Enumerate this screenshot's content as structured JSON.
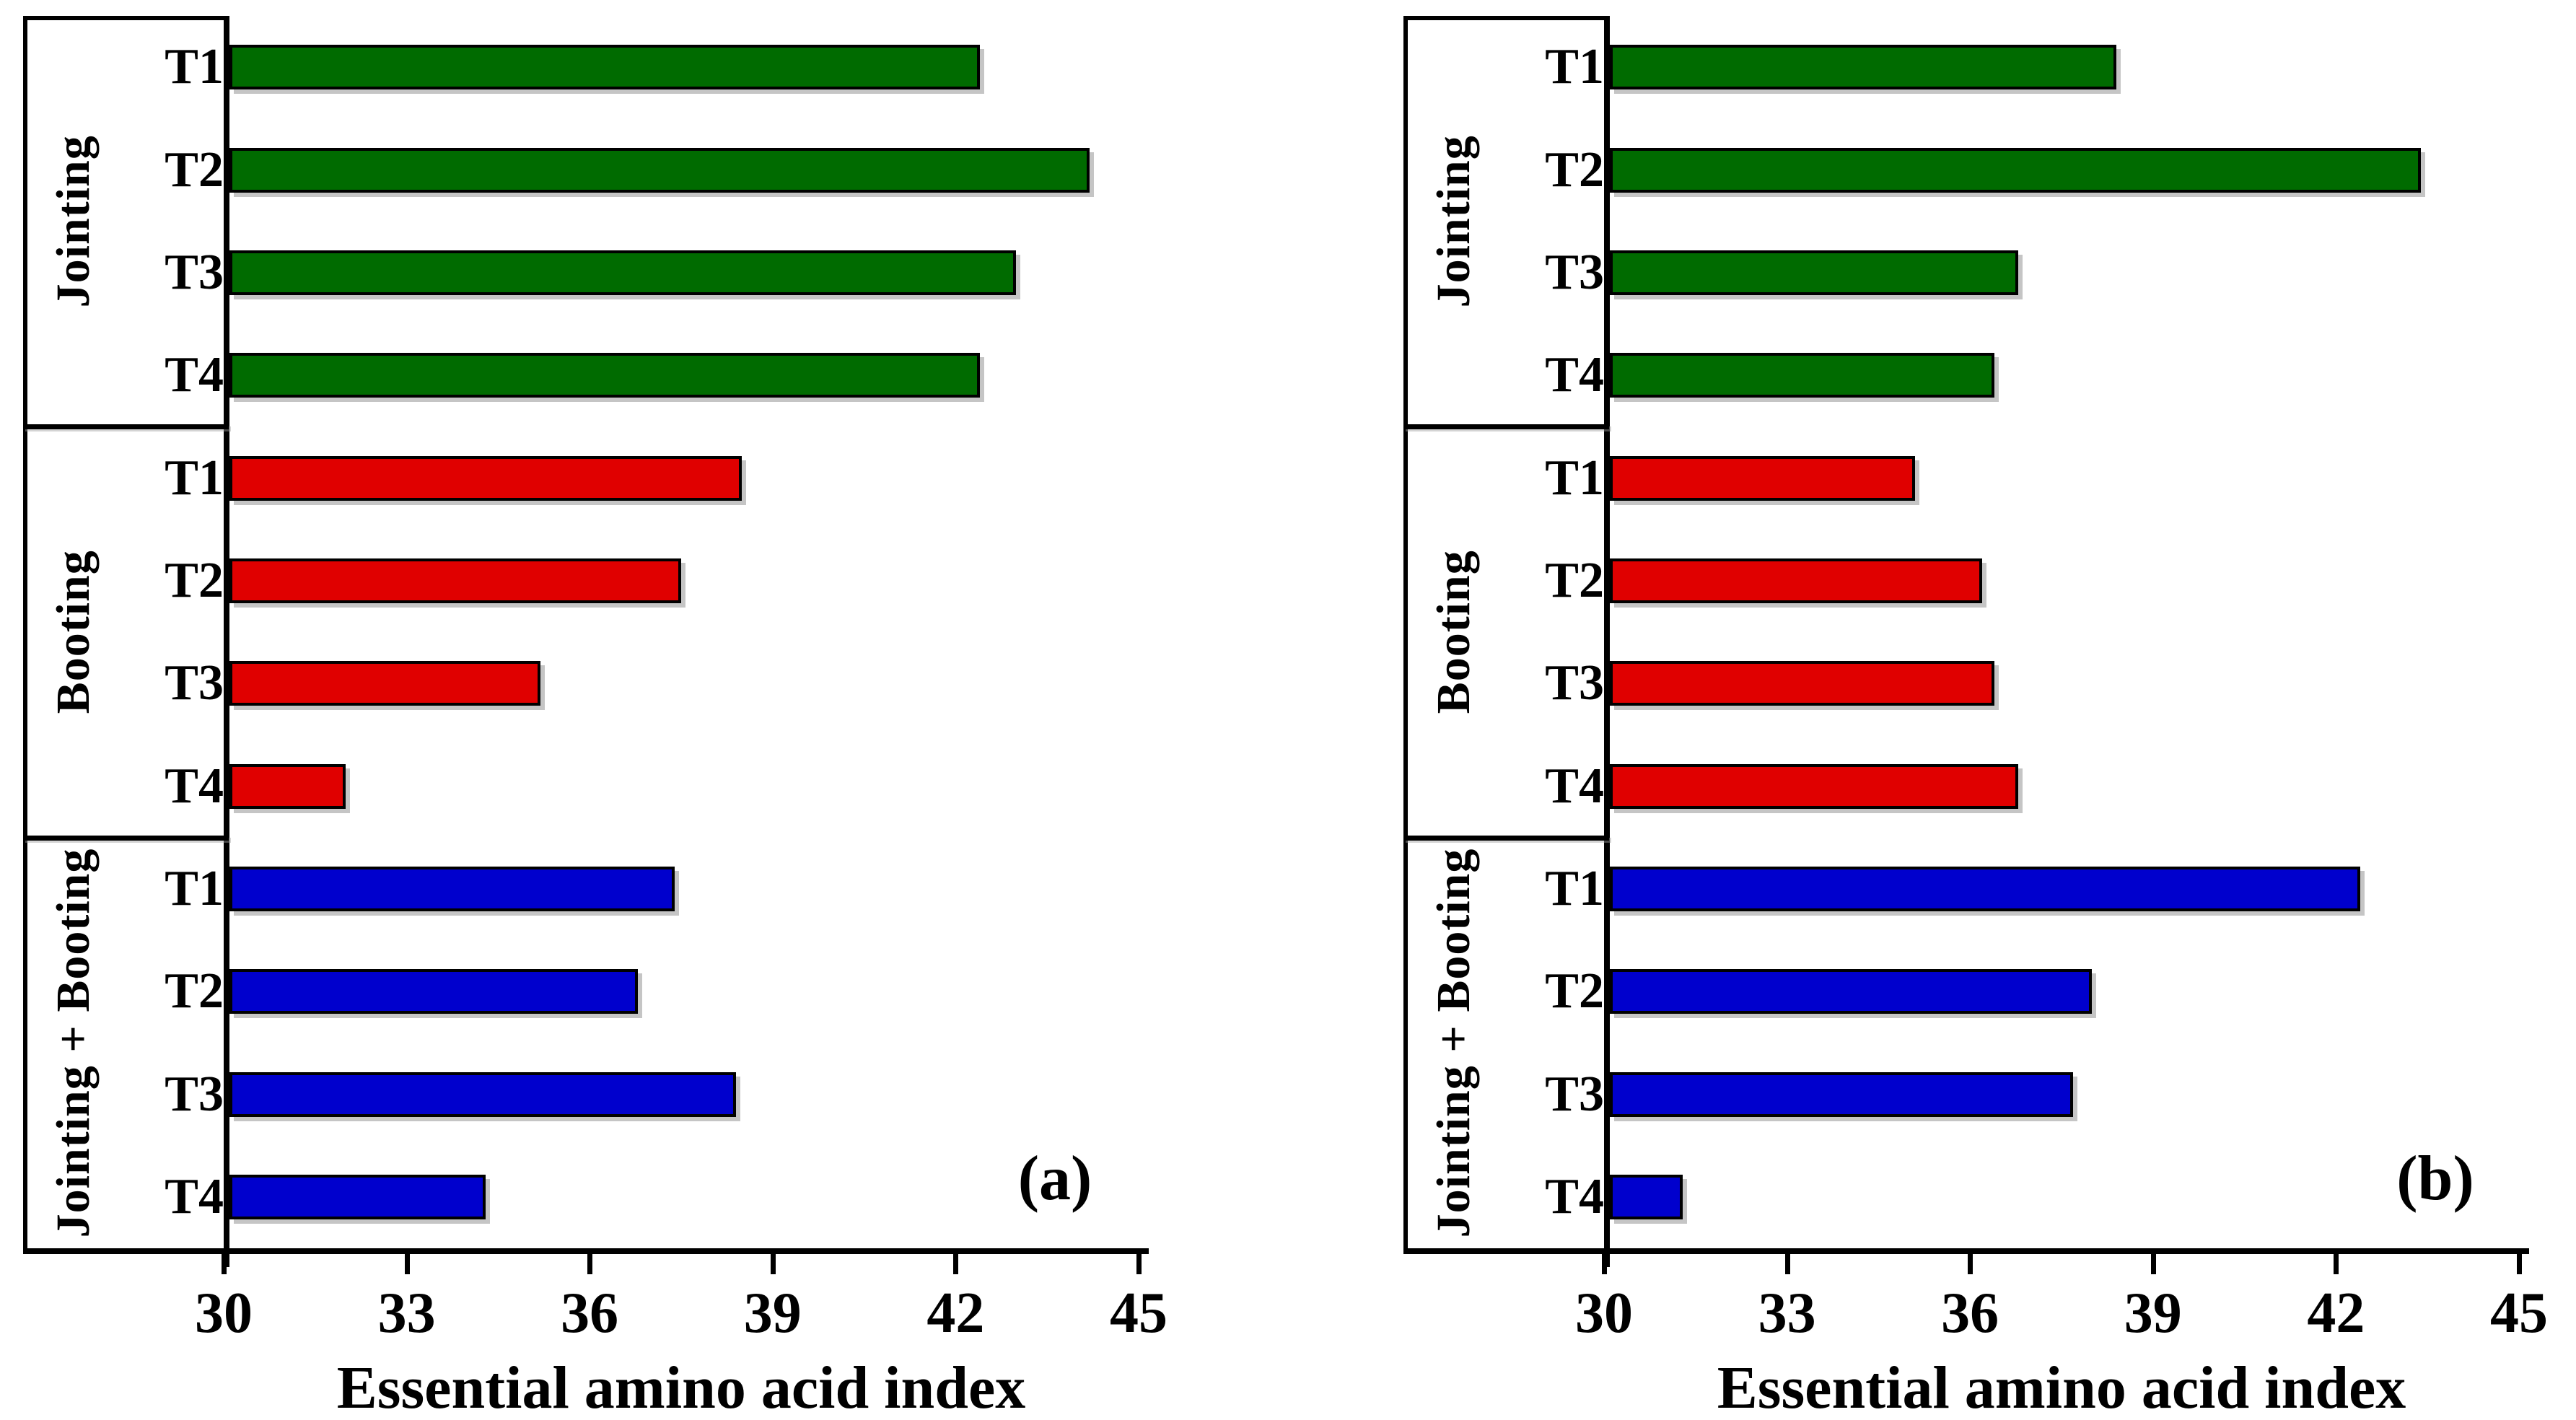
{
  "background_color": "#ffffff",
  "chart_data": [
    {
      "type": "bar",
      "orientation": "horizontal",
      "panel_label": "(a)",
      "xlabel": "Essential amino acid index",
      "xlim": [
        30,
        45
      ],
      "x_ticks": [
        30,
        33,
        36,
        39,
        42,
        45
      ],
      "grid": false,
      "legend": false,
      "bar_border_color": "#000000",
      "groups": [
        {
          "name": "Jointing",
          "color": "#006b00",
          "categories": [
            "T1",
            "T2",
            "T3",
            "T4"
          ],
          "values": [
            42.3,
            44.1,
            42.9,
            42.3
          ]
        },
        {
          "name": "Booting",
          "color": "#e00000",
          "categories": [
            "T1",
            "T2",
            "T3",
            "T4"
          ],
          "values": [
            38.4,
            37.4,
            35.1,
            31.9
          ]
        },
        {
          "name": "Jointing + Booting",
          "color": "#0000cd",
          "categories": [
            "T1",
            "T2",
            "T3",
            "T4"
          ],
          "values": [
            37.3,
            36.7,
            38.3,
            34.2
          ]
        }
      ]
    },
    {
      "type": "bar",
      "orientation": "horizontal",
      "panel_label": "(b)",
      "xlabel": "Essential amino acid index",
      "xlim": [
        30,
        45
      ],
      "x_ticks": [
        30,
        33,
        36,
        39,
        42,
        45
      ],
      "grid": false,
      "legend": false,
      "bar_border_color": "#000000",
      "groups": [
        {
          "name": "Jointing",
          "color": "#006b00",
          "categories": [
            "T1",
            "T2",
            "T3",
            "T4"
          ],
          "values": [
            38.3,
            43.3,
            36.7,
            36.3
          ]
        },
        {
          "name": "Booting",
          "color": "#e00000",
          "categories": [
            "T1",
            "T2",
            "T3",
            "T4"
          ],
          "values": [
            35.0,
            36.1,
            36.3,
            36.7
          ]
        },
        {
          "name": "Jointing + Booting",
          "color": "#0000cd",
          "categories": [
            "T1",
            "T2",
            "T3",
            "T4"
          ],
          "values": [
            42.3,
            37.9,
            37.6,
            31.2
          ]
        }
      ]
    }
  ]
}
